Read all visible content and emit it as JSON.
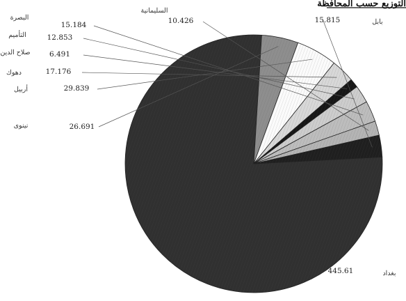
{
  "chart_data": {
    "type": "pie",
    "title": "التوزيع حسب المحافظة",
    "slices": [
      {
        "name": "بغداد",
        "value": 445.61,
        "label": "445.61",
        "color": "#303030"
      },
      {
        "name": "نينوى",
        "value": 26.691,
        "label": "26.691",
        "color": "#8e8e8e"
      },
      {
        "name": "أربيل",
        "value": 29.839,
        "label": "29.839",
        "color": "#fbfbfb"
      },
      {
        "name": "دهوك",
        "value": 17.176,
        "label": "17.176",
        "color": "#d8d8d8"
      },
      {
        "name": "صلاح الدين",
        "value": 6.491,
        "label": "6.491",
        "color": "#161616"
      },
      {
        "name": "التأميم",
        "value": 12.853,
        "label": "12.853",
        "color": "#cdcdcd"
      },
      {
        "name": "البصرة",
        "value": 15.184,
        "label": "15.184",
        "color": "#bdbdbd"
      },
      {
        "name": "السليمانية",
        "value": 10.426,
        "label": "10.426",
        "color": "#b4b4b4"
      },
      {
        "name": "بابل",
        "value": 15.815,
        "label": "15.815",
        "color": "#1f1f1f"
      }
    ]
  }
}
